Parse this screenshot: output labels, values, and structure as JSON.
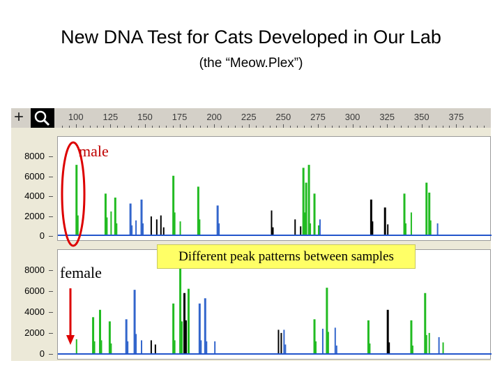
{
  "slide": {
    "title": "New DNA Test for Cats Developed in Our Lab",
    "subtitle": "(the “Meow.Plex”)"
  },
  "viewer": {
    "ruler_labels": [
      "100",
      "125",
      "150",
      "175",
      "200",
      "225",
      "250",
      "275",
      "300",
      "325",
      "350",
      "375"
    ],
    "ruler_range": [
      85,
      400
    ],
    "y_tick_labels": [
      "8000",
      "6000",
      "4000",
      "2000",
      "0"
    ],
    "y_max": 9500,
    "panels": [
      {
        "id": "male",
        "peaks": [
          {
            "x": 100,
            "h": 7100,
            "color": "green"
          },
          {
            "x": 101,
            "h": 2000,
            "color": "green"
          },
          {
            "x": 121,
            "h": 4200,
            "color": "green"
          },
          {
            "x": 122,
            "h": 1800,
            "color": "green"
          },
          {
            "x": 125,
            "h": 2400,
            "color": "green"
          },
          {
            "x": 128,
            "h": 3800,
            "color": "green"
          },
          {
            "x": 129,
            "h": 1200,
            "color": "green"
          },
          {
            "x": 139,
            "h": 3200,
            "color": "blue"
          },
          {
            "x": 140,
            "h": 1000,
            "color": "blue"
          },
          {
            "x": 143,
            "h": 1500,
            "color": "blue"
          },
          {
            "x": 147,
            "h": 3600,
            "color": "blue"
          },
          {
            "x": 148,
            "h": 1200,
            "color": "blue"
          },
          {
            "x": 154,
            "h": 1900,
            "color": "black"
          },
          {
            "x": 158,
            "h": 1600,
            "color": "black"
          },
          {
            "x": 161,
            "h": 2000,
            "color": "black"
          },
          {
            "x": 163,
            "h": 800,
            "color": "black"
          },
          {
            "x": 170,
            "h": 6000,
            "color": "green"
          },
          {
            "x": 171,
            "h": 2300,
            "color": "green"
          },
          {
            "x": 175,
            "h": 1400,
            "color": "green"
          },
          {
            "x": 188,
            "h": 4900,
            "color": "green"
          },
          {
            "x": 189,
            "h": 1600,
            "color": "green"
          },
          {
            "x": 202,
            "h": 3000,
            "color": "blue"
          },
          {
            "x": 203,
            "h": 1200,
            "color": "blue"
          },
          {
            "x": 241,
            "h": 2500,
            "color": "black"
          },
          {
            "x": 242,
            "h": 800,
            "color": "black"
          },
          {
            "x": 264,
            "h": 6800,
            "color": "green"
          },
          {
            "x": 265,
            "h": 2300,
            "color": "green"
          },
          {
            "x": 266,
            "h": 5300,
            "color": "green"
          },
          {
            "x": 268,
            "h": 7100,
            "color": "green"
          },
          {
            "x": 269,
            "h": 1200,
            "color": "green"
          },
          {
            "x": 272,
            "h": 4200,
            "color": "green"
          },
          {
            "x": 275,
            "h": 1000,
            "color": "green"
          },
          {
            "x": 262,
            "h": 900,
            "color": "black"
          },
          {
            "x": 258,
            "h": 1600,
            "color": "black"
          },
          {
            "x": 276,
            "h": 1600,
            "color": "blue"
          },
          {
            "x": 313,
            "h": 3600,
            "color": "black"
          },
          {
            "x": 314,
            "h": 1400,
            "color": "black"
          },
          {
            "x": 323,
            "h": 2800,
            "color": "black"
          },
          {
            "x": 325,
            "h": 1100,
            "color": "black"
          },
          {
            "x": 337,
            "h": 4200,
            "color": "green"
          },
          {
            "x": 338,
            "h": 1200,
            "color": "green"
          },
          {
            "x": 342,
            "h": 2300,
            "color": "green"
          },
          {
            "x": 353,
            "h": 5300,
            "color": "green"
          },
          {
            "x": 355,
            "h": 4300,
            "color": "green"
          },
          {
            "x": 356,
            "h": 1500,
            "color": "green"
          },
          {
            "x": 361,
            "h": 1200,
            "color": "blue"
          }
        ]
      },
      {
        "id": "female",
        "peaks": [
          {
            "x": 100,
            "h": 1400,
            "color": "green"
          },
          {
            "x": 112,
            "h": 3500,
            "color": "green"
          },
          {
            "x": 113,
            "h": 1200,
            "color": "green"
          },
          {
            "x": 117,
            "h": 4200,
            "color": "green"
          },
          {
            "x": 118,
            "h": 1300,
            "color": "green"
          },
          {
            "x": 124,
            "h": 3100,
            "color": "green"
          },
          {
            "x": 125,
            "h": 1000,
            "color": "green"
          },
          {
            "x": 136,
            "h": 3300,
            "color": "blue"
          },
          {
            "x": 137,
            "h": 1200,
            "color": "blue"
          },
          {
            "x": 142,
            "h": 6100,
            "color": "blue"
          },
          {
            "x": 143,
            "h": 1900,
            "color": "blue"
          },
          {
            "x": 147,
            "h": 1300,
            "color": "blue"
          },
          {
            "x": 154,
            "h": 1300,
            "color": "black"
          },
          {
            "x": 157,
            "h": 900,
            "color": "black"
          },
          {
            "x": 170,
            "h": 4800,
            "color": "green"
          },
          {
            "x": 171,
            "h": 1300,
            "color": "green"
          },
          {
            "x": 175,
            "h": 8700,
            "color": "green"
          },
          {
            "x": 176,
            "h": 3100,
            "color": "green"
          },
          {
            "x": 178,
            "h": 5800,
            "color": "black"
          },
          {
            "x": 179,
            "h": 3200,
            "color": "black"
          },
          {
            "x": 181,
            "h": 6200,
            "color": "green"
          },
          {
            "x": 189,
            "h": 4800,
            "color": "blue"
          },
          {
            "x": 190,
            "h": 1300,
            "color": "blue"
          },
          {
            "x": 193,
            "h": 5300,
            "color": "blue"
          },
          {
            "x": 194,
            "h": 1200,
            "color": "blue"
          },
          {
            "x": 200,
            "h": 1200,
            "color": "blue"
          },
          {
            "x": 246,
            "h": 2300,
            "color": "black"
          },
          {
            "x": 248,
            "h": 2000,
            "color": "black"
          },
          {
            "x": 250,
            "h": 2300,
            "color": "blue"
          },
          {
            "x": 251,
            "h": 900,
            "color": "blue"
          },
          {
            "x": 272,
            "h": 3300,
            "color": "green"
          },
          {
            "x": 273,
            "h": 1200,
            "color": "green"
          },
          {
            "x": 278,
            "h": 2400,
            "color": "blue"
          },
          {
            "x": 281,
            "h": 6300,
            "color": "green"
          },
          {
            "x": 282,
            "h": 2100,
            "color": "green"
          },
          {
            "x": 287,
            "h": 2500,
            "color": "blue"
          },
          {
            "x": 288,
            "h": 800,
            "color": "blue"
          },
          {
            "x": 311,
            "h": 3200,
            "color": "green"
          },
          {
            "x": 312,
            "h": 1000,
            "color": "green"
          },
          {
            "x": 325,
            "h": 4200,
            "color": "black"
          },
          {
            "x": 326,
            "h": 1100,
            "color": "black"
          },
          {
            "x": 342,
            "h": 3200,
            "color": "green"
          },
          {
            "x": 343,
            "h": 800,
            "color": "green"
          },
          {
            "x": 352,
            "h": 5800,
            "color": "green"
          },
          {
            "x": 353,
            "h": 1800,
            "color": "green"
          },
          {
            "x": 355,
            "h": 2000,
            "color": "green"
          },
          {
            "x": 362,
            "h": 1600,
            "color": "blue"
          },
          {
            "x": 365,
            "h": 1100,
            "color": "green"
          }
        ]
      }
    ],
    "colors": {
      "green": "#22bb22",
      "blue": "#3366cc",
      "black": "#000000",
      "baseline": "#2255cc"
    }
  },
  "annotations": {
    "male_label": "male",
    "female_label": "female",
    "callout": "Different peak patterns between samples",
    "ellipse_color": "#dd0000",
    "arrow_color": "#dd0000"
  }
}
